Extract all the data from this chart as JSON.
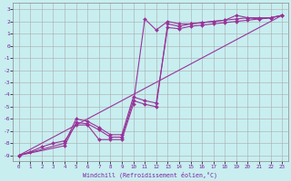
{
  "xlabel": "Windchill (Refroidissement éolien,°C)",
  "ylabel": "",
  "bg_color": "#c8eef0",
  "grid_color": "#aaaaaa",
  "line_color": "#993399",
  "xlim": [
    -0.5,
    23.5
  ],
  "ylim": [
    -9.5,
    3.5
  ],
  "xticks": [
    0,
    1,
    2,
    3,
    4,
    5,
    6,
    7,
    8,
    9,
    10,
    11,
    12,
    13,
    14,
    15,
    16,
    17,
    18,
    19,
    20,
    21,
    22,
    23
  ],
  "yticks": [
    3,
    2,
    1,
    0,
    -1,
    -2,
    -3,
    -4,
    -5,
    -6,
    -7,
    -8,
    -9
  ],
  "series": [
    {
      "x": [
        0,
        1,
        2,
        3,
        4,
        5,
        6,
        7,
        8,
        9,
        10,
        11,
        12,
        13,
        14,
        15,
        16,
        17,
        18,
        19,
        20,
        21,
        22,
        23
      ],
      "y": [
        -9,
        -8.7,
        -8.3,
        -8.0,
        -7.8,
        -6.5,
        -6.5,
        -7.7,
        -7.7,
        -7.7,
        -4.8,
        2.2,
        1.3,
        2.0,
        1.8,
        1.8,
        1.9,
        2.0,
        2.1,
        2.5,
        2.3,
        2.2,
        2.3,
        2.5
      ]
    },
    {
      "x": [
        0,
        4,
        5,
        6,
        7,
        8,
        9,
        10,
        11,
        12,
        13,
        14,
        15,
        16,
        17,
        18,
        19,
        20,
        21,
        22,
        23
      ],
      "y": [
        -9,
        -8.2,
        -6.3,
        -6.4,
        -6.9,
        -7.5,
        -7.5,
        -4.5,
        -4.8,
        -5.0,
        1.8,
        1.6,
        1.8,
        1.9,
        2.0,
        2.1,
        2.2,
        2.3,
        2.3,
        2.3,
        2.5
      ]
    },
    {
      "x": [
        0,
        4,
        5,
        6,
        7,
        8,
        9,
        10,
        11,
        12,
        13,
        14,
        15,
        16,
        17,
        18,
        19,
        20,
        21,
        22,
        23
      ],
      "y": [
        -9,
        -8.0,
        -6.0,
        -6.2,
        -6.7,
        -7.3,
        -7.3,
        -4.2,
        -4.5,
        -4.7,
        1.5,
        1.4,
        1.6,
        1.7,
        1.8,
        1.9,
        2.0,
        2.1,
        2.2,
        2.3,
        2.5
      ]
    },
    {
      "x": [
        0,
        23
      ],
      "y": [
        -9,
        2.5
      ]
    }
  ]
}
